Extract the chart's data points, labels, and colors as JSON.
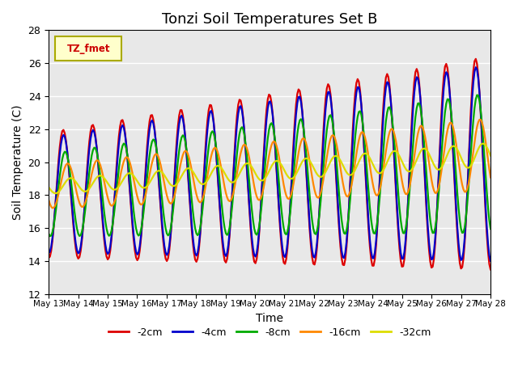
{
  "title": "Tonzi Soil Temperatures Set B",
  "xlabel": "Time",
  "ylabel": "Soil Temperature (C)",
  "ylim": [
    12,
    28
  ],
  "yticks": [
    12,
    14,
    16,
    18,
    20,
    22,
    24,
    26,
    28
  ],
  "legend_label": "TZ_fmet",
  "series_labels": [
    "-2cm",
    "-4cm",
    "-8cm",
    "-16cm",
    "-32cm"
  ],
  "series_colors": [
    "#dd0000",
    "#0000cc",
    "#00aa00",
    "#ff8800",
    "#dddd00"
  ],
  "bg_color": "#e8e8e8",
  "n_days": 15,
  "start_day": 13,
  "tick_days": [
    13,
    14,
    15,
    16,
    17,
    18,
    19,
    20,
    21,
    22,
    23,
    24,
    25,
    26,
    27,
    28
  ]
}
